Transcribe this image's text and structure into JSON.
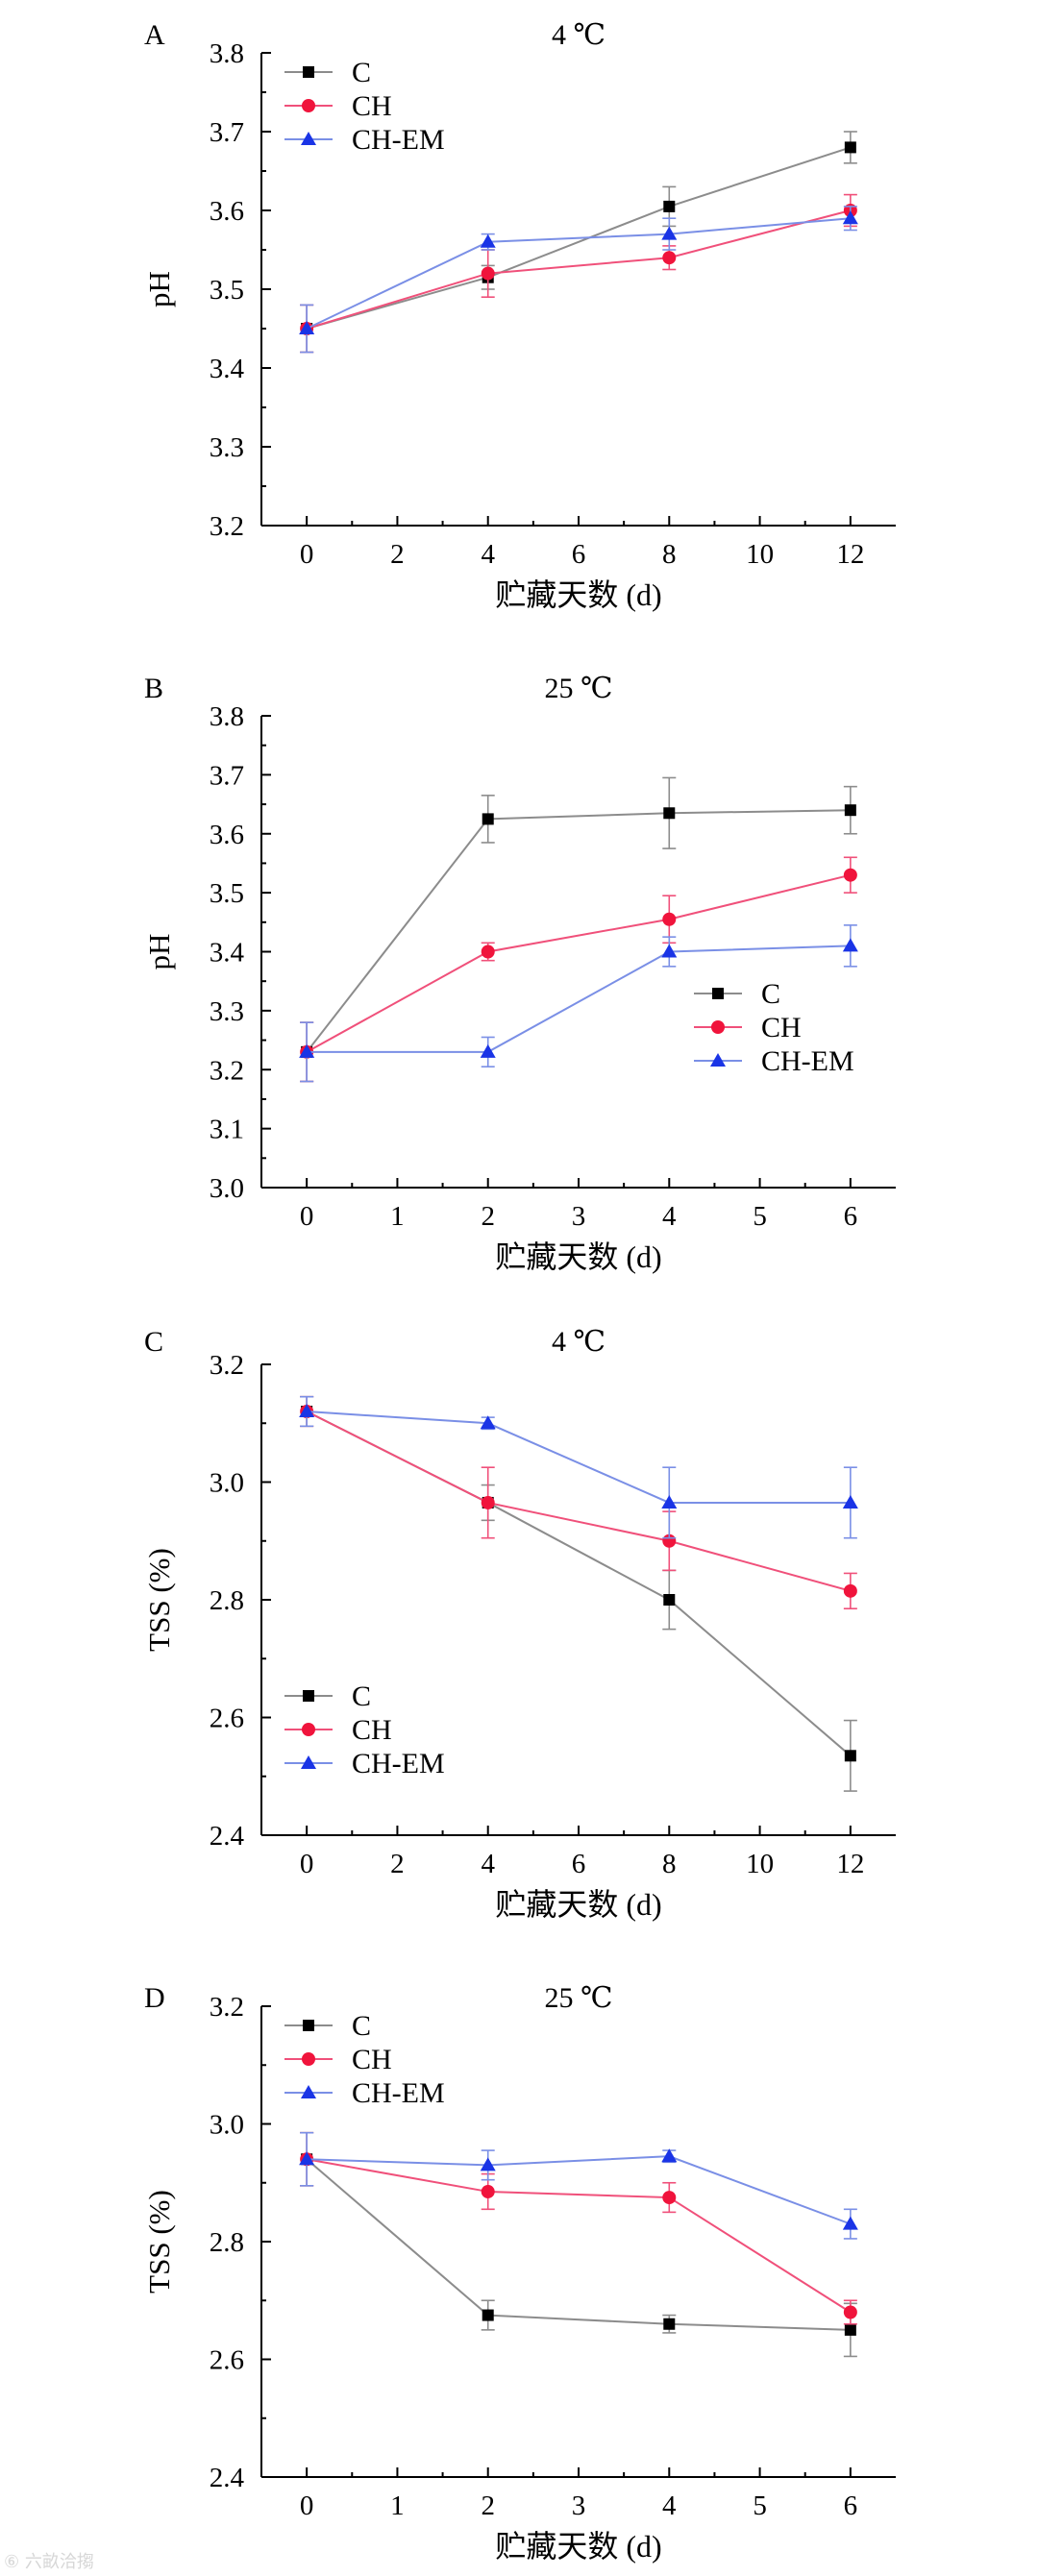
{
  "chart_data": [
    {
      "type": "line",
      "panel": "A",
      "title": "4 ℃",
      "xlabel": "贮藏天数 (d)",
      "ylabel": "pH",
      "xlim": [
        -1,
        13
      ],
      "ylim": [
        3.2,
        3.8
      ],
      "xticks": [
        0,
        2,
        4,
        6,
        8,
        10,
        12
      ],
      "yticks": [
        3.2,
        3.3,
        3.4,
        3.5,
        3.6,
        3.7,
        3.8
      ],
      "ytick_decimals": 1,
      "legend": "top-left",
      "x": [
        0,
        4,
        8,
        12
      ],
      "series": [
        {
          "name": "C",
          "values": [
            3.45,
            3.515,
            3.605,
            3.68
          ],
          "errors": [
            0.03,
            0.015,
            0.025,
            0.02
          ]
        },
        {
          "name": "CH",
          "values": [
            3.45,
            3.52,
            3.54,
            3.6
          ],
          "errors": [
            0.03,
            0.03,
            0.015,
            0.02
          ]
        },
        {
          "name": "CH-EM",
          "values": [
            3.45,
            3.56,
            3.57,
            3.59
          ],
          "errors": [
            0.03,
            0.01,
            0.02,
            0.015
          ]
        }
      ]
    },
    {
      "type": "line",
      "panel": "B",
      "title": "25 ℃",
      "xlabel": "贮藏天数 (d)",
      "ylabel": "pH",
      "xlim": [
        -0.5,
        6.5
      ],
      "ylim": [
        3.0,
        3.8
      ],
      "xticks": [
        0,
        1,
        2,
        3,
        4,
        5,
        6
      ],
      "yticks": [
        3.0,
        3.1,
        3.2,
        3.3,
        3.4,
        3.5,
        3.6,
        3.7,
        3.8
      ],
      "ytick_decimals": 1,
      "legend": "bottom-right",
      "x": [
        0,
        2,
        4,
        6
      ],
      "series": [
        {
          "name": "C",
          "values": [
            3.23,
            3.625,
            3.635,
            3.64
          ],
          "errors": [
            0.05,
            0.04,
            0.06,
            0.04
          ]
        },
        {
          "name": "CH",
          "values": [
            3.23,
            3.4,
            3.455,
            3.53
          ],
          "errors": [
            0.05,
            0.015,
            0.04,
            0.03
          ]
        },
        {
          "name": "CH-EM",
          "values": [
            3.23,
            3.23,
            3.4,
            3.41
          ],
          "errors": [
            0.05,
            0.025,
            0.025,
            0.035
          ]
        }
      ]
    },
    {
      "type": "line",
      "panel": "C",
      "title": "4 ℃",
      "xlabel": "贮藏天数 (d)",
      "ylabel": "TSS (%)",
      "xlim": [
        -1,
        13
      ],
      "ylim": [
        2.4,
        3.2
      ],
      "xticks": [
        0,
        2,
        4,
        6,
        8,
        10,
        12
      ],
      "yticks": [
        2.4,
        2.6,
        2.8,
        3.0,
        3.2
      ],
      "ytick_decimals": 1,
      "legend": "bottom-left",
      "x": [
        0,
        4,
        8,
        12
      ],
      "series": [
        {
          "name": "C",
          "values": [
            3.12,
            2.965,
            2.8,
            2.535
          ],
          "errors": [
            0.025,
            0.03,
            0.05,
            0.06
          ]
        },
        {
          "name": "CH",
          "values": [
            3.12,
            2.965,
            2.9,
            2.815
          ],
          "errors": [
            0.025,
            0.06,
            0.05,
            0.03
          ]
        },
        {
          "name": "CH-EM",
          "values": [
            3.12,
            3.1,
            2.965,
            2.965
          ],
          "errors": [
            0.025,
            0.01,
            0.06,
            0.06
          ]
        }
      ]
    },
    {
      "type": "line",
      "panel": "D",
      "title": "25 ℃",
      "xlabel": "贮藏天数 (d)",
      "ylabel": "TSS (%)",
      "xlim": [
        -0.5,
        6.5
      ],
      "ylim": [
        2.4,
        3.2
      ],
      "xticks": [
        0,
        1,
        2,
        3,
        4,
        5,
        6
      ],
      "yticks": [
        2.4,
        2.6,
        2.8,
        3.0,
        3.2
      ],
      "ytick_decimals": 1,
      "legend": "top-left",
      "x": [
        0,
        2,
        4,
        6
      ],
      "series": [
        {
          "name": "C",
          "values": [
            2.94,
            2.675,
            2.66,
            2.65
          ],
          "errors": [
            0.045,
            0.025,
            0.015,
            0.045
          ]
        },
        {
          "name": "CH",
          "values": [
            2.94,
            2.885,
            2.875,
            2.68
          ],
          "errors": [
            0.045,
            0.03,
            0.025,
            0.02
          ]
        },
        {
          "name": "CH-EM",
          "values": [
            2.94,
            2.93,
            2.945,
            2.83
          ],
          "errors": [
            0.045,
            0.025,
            0.01,
            0.025
          ]
        }
      ]
    }
  ],
  "series_colors": {
    "C": "#8c8c8c",
    "CH": "#f0507a",
    "CH-EM": "#7a8fe6"
  },
  "marker_colors": {
    "C": "#000000",
    "CH": "#f0143c",
    "CH-EM": "#1a34e6"
  },
  "watermark": "⑥ 六畝洽搊"
}
